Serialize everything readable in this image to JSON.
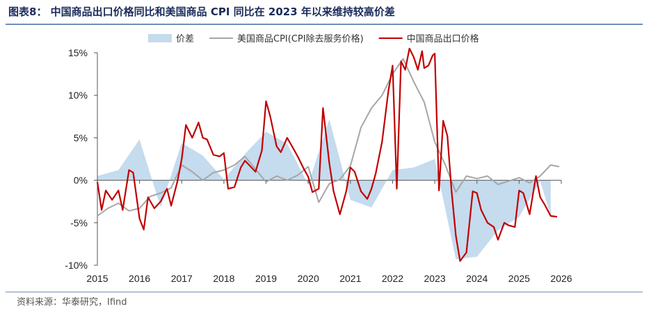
{
  "header": {
    "title": "图表8：  中国商品出口价格同比和美国商品 CPI 同比在 2023 年以来维持较高价差"
  },
  "footer": {
    "source": "资料来源：华泰研究，Ifind"
  },
  "colors": {
    "spread_fill": "#c5dbee",
    "cpi_line": "#a6a6a6",
    "export_line": "#c00000",
    "title": "#1a2b5a",
    "rule": "#6f8fb8"
  },
  "chart_data": {
    "type": "line",
    "title": "",
    "xlabel": "",
    "ylabel": "",
    "ylim": [
      -10,
      15
    ],
    "yticks": [
      -10,
      -5,
      0,
      5,
      10,
      15
    ],
    "ytick_labels": [
      "-10%",
      "-5%",
      "0%",
      "5%",
      "10%",
      "15%"
    ],
    "xlim": [
      2015,
      2026
    ],
    "xticks": [
      2015,
      2016,
      2017,
      2018,
      2019,
      2020,
      2021,
      2022,
      2023,
      2024,
      2025,
      2026
    ],
    "xtick_labels": [
      "2015",
      "2016",
      "2017",
      "2018",
      "2019",
      "2020",
      "2021",
      "2022",
      "2023",
      "2024",
      "2025",
      "2026"
    ],
    "grid": false,
    "legend_position": "top",
    "series": [
      {
        "name": "价差",
        "kind": "area",
        "color": "#c5dbee",
        "x": [
          2015.0,
          2015.5,
          2016.0,
          2016.5,
          2017.0,
          2017.5,
          2018.0,
          2018.5,
          2019.0,
          2019.5,
          2020.0,
          2020.5,
          2021.0,
          2021.5,
          2022.0,
          2022.5,
          2023.0,
          2023.5,
          2024.0,
          2024.5,
          2025.0,
          2025.5,
          2025.75
        ],
        "values": [
          0.5,
          1.2,
          4.8,
          -3.2,
          4.4,
          2.9,
          0.1,
          3.1,
          5.7,
          4.3,
          -0.5,
          7.2,
          -2.3,
          -3.2,
          1.2,
          1.5,
          2.5,
          -9.3,
          -9.0,
          -5.9,
          -4.3,
          -0.1,
          -4.2
        ]
      },
      {
        "name": "美国商品CPI(CPI除去服务价格)",
        "kind": "line",
        "color": "#a6a6a6",
        "x": [
          2015.0,
          2015.25,
          2015.5,
          2015.75,
          2016.0,
          2016.25,
          2016.5,
          2016.75,
          2017.0,
          2017.25,
          2017.5,
          2017.75,
          2018.0,
          2018.25,
          2018.5,
          2018.75,
          2019.0,
          2019.25,
          2019.5,
          2019.75,
          2020.0,
          2020.25,
          2020.5,
          2020.75,
          2021.0,
          2021.25,
          2021.5,
          2021.75,
          2022.0,
          2022.25,
          2022.5,
          2022.75,
          2023.0,
          2023.25,
          2023.5,
          2023.75,
          2024.0,
          2024.25,
          2024.5,
          2024.75,
          2025.0,
          2025.25,
          2025.5,
          2025.75,
          2025.95
        ],
        "values": [
          -4.2,
          -3.3,
          -2.7,
          -3.6,
          -3.3,
          -1.9,
          -1.5,
          -0.9,
          1.8,
          1.0,
          0.0,
          0.9,
          1.2,
          1.8,
          2.8,
          1.3,
          -0.2,
          0.5,
          0.0,
          0.6,
          1.6,
          -2.6,
          -0.4,
          0.1,
          1.7,
          6.2,
          8.5,
          10.0,
          12.5,
          14.3,
          11.6,
          9.2,
          4.5,
          1.8,
          -1.4,
          0.5,
          0.2,
          0.5,
          -0.5,
          -0.1,
          0.3,
          -0.3,
          0.5,
          1.8,
          1.6
        ]
      },
      {
        "name": "中国商品出口价格",
        "kind": "line",
        "color": "#c00000",
        "x": [
          2015.0,
          2015.1,
          2015.2,
          2015.35,
          2015.5,
          2015.6,
          2015.75,
          2015.85,
          2016.0,
          2016.1,
          2016.2,
          2016.35,
          2016.5,
          2016.65,
          2016.75,
          2016.9,
          2017.0,
          2017.1,
          2017.25,
          2017.4,
          2017.5,
          2017.6,
          2017.75,
          2017.9,
          2018.0,
          2018.1,
          2018.25,
          2018.4,
          2018.5,
          2018.75,
          2018.9,
          2019.0,
          2019.1,
          2019.25,
          2019.35,
          2019.5,
          2019.65,
          2019.75,
          2019.9,
          2020.0,
          2020.1,
          2020.25,
          2020.35,
          2020.5,
          2020.6,
          2020.75,
          2020.9,
          2021.0,
          2021.1,
          2021.25,
          2021.4,
          2021.5,
          2021.6,
          2021.75,
          2021.9,
          2022.0,
          2022.1,
          2022.2,
          2022.3,
          2022.4,
          2022.5,
          2022.6,
          2022.7,
          2022.75,
          2022.85,
          2022.95,
          2023.0,
          2023.1,
          2023.2,
          2023.3,
          2023.4,
          2023.5,
          2023.6,
          2023.75,
          2023.9,
          2024.0,
          2024.1,
          2024.25,
          2024.4,
          2024.5,
          2024.65,
          2024.75,
          2024.9,
          2025.0,
          2025.1,
          2025.25,
          2025.4,
          2025.5,
          2025.6,
          2025.75,
          2025.9
        ],
        "values": [
          -0.2,
          -3.5,
          -1.2,
          -2.3,
          -1.2,
          -3.5,
          1.2,
          0.9,
          -4.5,
          -5.8,
          -2.0,
          -3.3,
          -2.5,
          -1.0,
          -3.0,
          -0.1,
          2.5,
          6.5,
          5.0,
          6.8,
          5.0,
          4.8,
          3.0,
          2.8,
          3.2,
          -1.0,
          -0.8,
          1.5,
          2.3,
          1.0,
          3.5,
          9.3,
          7.5,
          4.0,
          3.3,
          5.0,
          3.7,
          2.8,
          1.3,
          0.4,
          -1.4,
          -1.0,
          8.5,
          2.0,
          -1.3,
          -4.0,
          -1.3,
          1.5,
          1.0,
          -1.3,
          -2.2,
          -1.0,
          0.8,
          4.5,
          10.5,
          13.5,
          -1.0,
          14.0,
          13.0,
          15.5,
          14.5,
          13.0,
          15.2,
          13.2,
          13.5,
          14.7,
          14.9,
          -1.2,
          7.0,
          5.2,
          -1.3,
          -6.5,
          -9.5,
          -8.5,
          -1.3,
          -1.5,
          -3.5,
          -5.0,
          -5.5,
          -7.0,
          -5.0,
          -5.3,
          -5.5,
          -1.2,
          -1.5,
          -4.0,
          0.5,
          -2.0,
          -2.8,
          -4.2,
          -4.3
        ]
      }
    ]
  }
}
